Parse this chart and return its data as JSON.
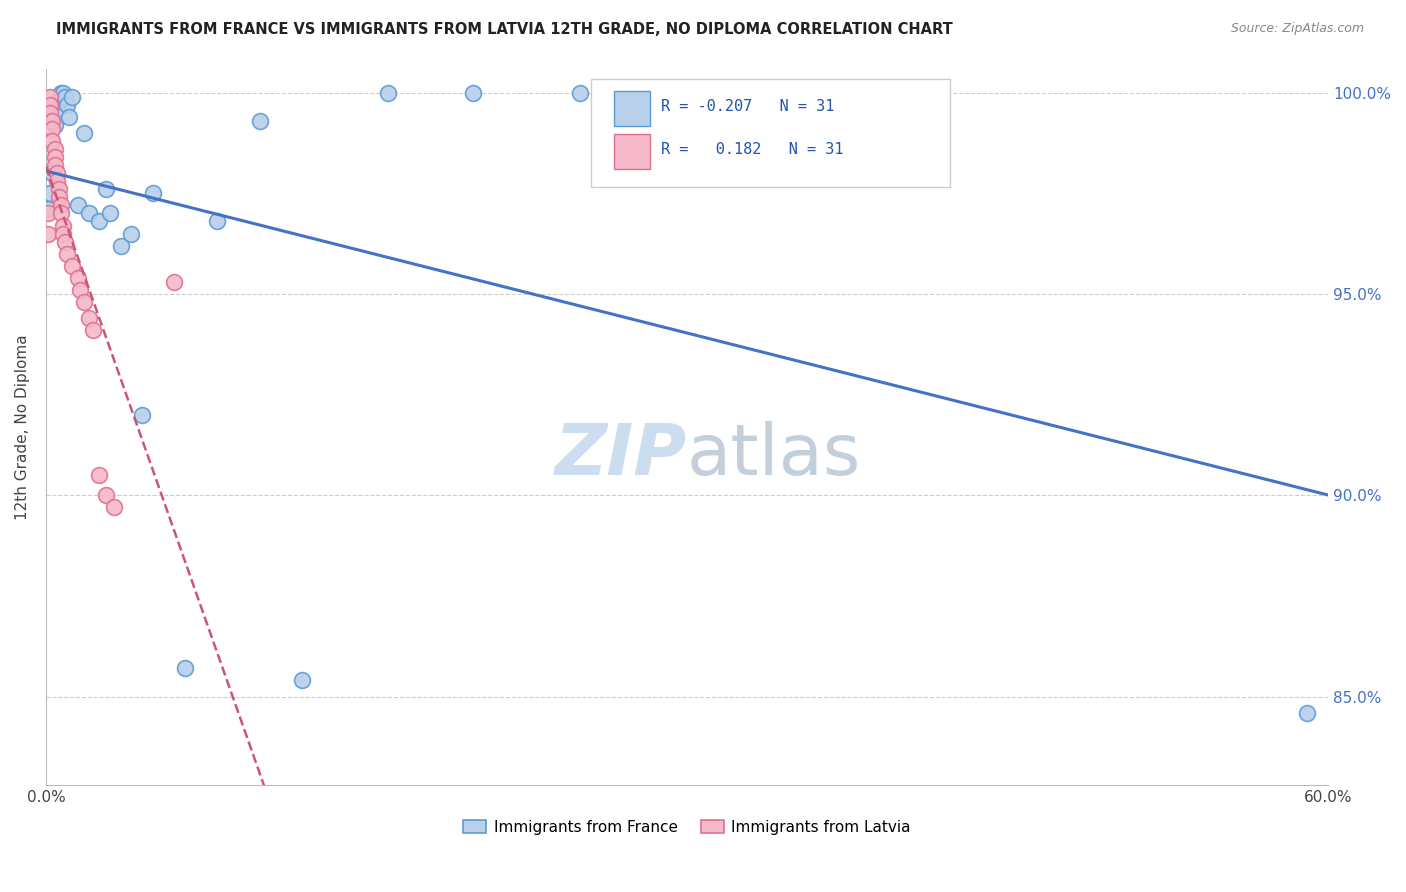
{
  "title": "IMMIGRANTS FROM FRANCE VS IMMIGRANTS FROM LATVIA 12TH GRADE, NO DIPLOMA CORRELATION CHART",
  "source": "Source: ZipAtlas.com",
  "ylabel": "12th Grade, No Diploma",
  "legend_france": "Immigrants from France",
  "legend_latvia": "Immigrants from Latvia",
  "R_france": -0.207,
  "R_latvia": 0.182,
  "N_france": 31,
  "N_latvia": 31,
  "france_fill": "#b8d0ea",
  "france_edge": "#5b9bd5",
  "latvia_fill": "#f4b8c8",
  "latvia_edge": "#e07090",
  "france_line_color": "#4472c4",
  "latvia_line_color": "#cc5577",
  "watermark_color": "#ccddf0",
  "xlim": [
    0.0,
    0.6
  ],
  "ylim": [
    0.828,
    1.006
  ],
  "ytick_vals": [
    0.85,
    0.9,
    0.95,
    1.0
  ],
  "ytick_labels": [
    "85.0%",
    "90.0%",
    "95.0%",
    "100.0%"
  ],
  "france_x": [
    0.001,
    0.002,
    0.003,
    0.004,
    0.005,
    0.006,
    0.007,
    0.008,
    0.009,
    0.01,
    0.011,
    0.012,
    0.015,
    0.018,
    0.02,
    0.025,
    0.028,
    0.03,
    0.035,
    0.04,
    0.045,
    0.05,
    0.065,
    0.08,
    0.1,
    0.12,
    0.16,
    0.2,
    0.25,
    0.36,
    0.59
  ],
  "france_y": [
    0.971,
    0.975,
    0.98,
    0.992,
    0.996,
    0.998,
    1.0,
    1.0,
    0.999,
    0.997,
    0.994,
    0.999,
    0.972,
    0.99,
    0.97,
    0.968,
    0.976,
    0.97,
    0.962,
    0.965,
    0.92,
    0.975,
    0.857,
    0.968,
    0.993,
    0.854,
    1.0,
    1.0,
    1.0,
    1.0,
    0.846
  ],
  "latvia_x": [
    0.001,
    0.001,
    0.002,
    0.002,
    0.002,
    0.003,
    0.003,
    0.003,
    0.004,
    0.004,
    0.004,
    0.005,
    0.005,
    0.006,
    0.006,
    0.007,
    0.007,
    0.008,
    0.008,
    0.009,
    0.01,
    0.012,
    0.015,
    0.016,
    0.018,
    0.02,
    0.022,
    0.025,
    0.028,
    0.032,
    0.06
  ],
  "latvia_y": [
    0.97,
    0.965,
    0.999,
    0.997,
    0.995,
    0.993,
    0.991,
    0.988,
    0.986,
    0.984,
    0.982,
    0.98,
    0.978,
    0.976,
    0.974,
    0.972,
    0.97,
    0.967,
    0.965,
    0.963,
    0.96,
    0.957,
    0.954,
    0.951,
    0.948,
    0.944,
    0.941,
    0.905,
    0.9,
    0.897,
    0.953
  ]
}
